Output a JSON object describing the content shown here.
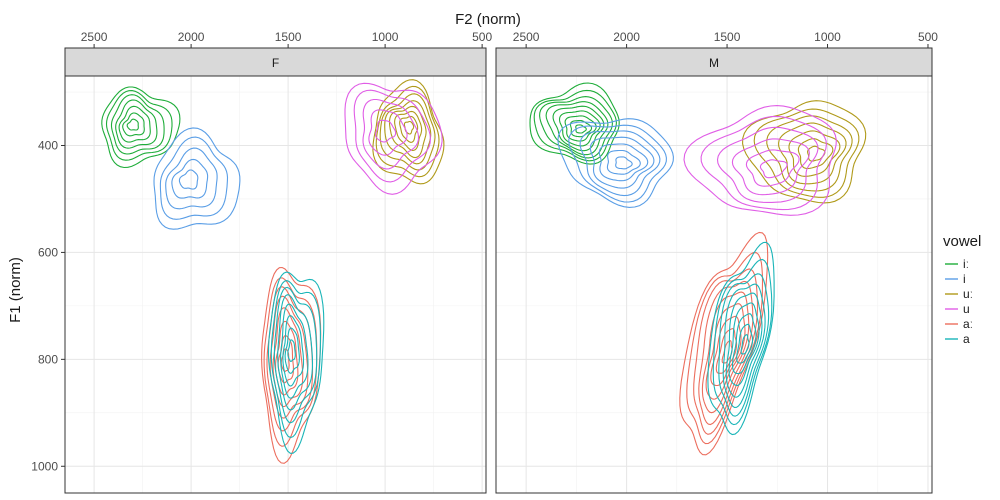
{
  "chart_data": {
    "type": "contour",
    "xlabel": "F2 (norm)",
    "ylabel": "F1 (norm)",
    "x_reversed": true,
    "y_reversed": true,
    "x_axis_position": "top",
    "xlim": [
      2650,
      480
    ],
    "ylim": [
      270,
      1050
    ],
    "x_ticks": [
      2500,
      2000,
      1500,
      1000,
      500
    ],
    "y_ticks": [
      400,
      600,
      800,
      1000
    ],
    "grid": true,
    "legend": {
      "title": "vowel",
      "position": "right",
      "entries": [
        {
          "label": "iː",
          "color": "#1fad3a"
        },
        {
          "label": "i",
          "color": "#5a9ee6"
        },
        {
          "label": "uː",
          "color": "#b09a1a"
        },
        {
          "label": "u",
          "color": "#e05ee6"
        },
        {
          "label": "aː",
          "color": "#ec6e5e"
        },
        {
          "label": "a",
          "color": "#1ab5b8"
        }
      ]
    },
    "panels": [
      {
        "label": "F",
        "series": [
          {
            "name": "iː",
            "center": [
              2270,
              365
            ],
            "spread": [
              190,
              72
            ],
            "rotation": 15,
            "rings": 7
          },
          {
            "name": "i",
            "center": [
              1980,
              470
            ],
            "spread": [
              220,
              90
            ],
            "rotation": 25,
            "rings": 5
          },
          {
            "name": "uː",
            "center": [
              880,
              380
            ],
            "spread": [
              180,
              90
            ],
            "rotation": -10,
            "rings": 8
          },
          {
            "name": "u",
            "center": [
              970,
              380
            ],
            "spread": [
              240,
              100
            ],
            "rotation": -10,
            "rings": 5
          },
          {
            "name": "aː",
            "center": [
              1490,
              800
            ],
            "spread": [
              150,
              170
            ],
            "rotation": 0,
            "rings": 8
          },
          {
            "name": "a",
            "center": [
              1460,
              790
            ],
            "spread": [
              140,
              160
            ],
            "rotation": 0,
            "rings": 8
          }
        ]
      },
      {
        "label": "M",
        "series": [
          {
            "name": "iː",
            "center": [
              2250,
              360
            ],
            "spread": [
              220,
              70
            ],
            "rotation": 10,
            "rings": 9
          },
          {
            "name": "i",
            "center": [
              2050,
              425
            ],
            "spread": [
              270,
              80
            ],
            "rotation": 10,
            "rings": 7
          },
          {
            "name": "uː",
            "center": [
              1100,
              410
            ],
            "spread": [
              280,
              95
            ],
            "rotation": -12,
            "rings": 7
          },
          {
            "name": "u",
            "center": [
              1300,
              430
            ],
            "spread": [
              360,
              100
            ],
            "rotation": -10,
            "rings": 6
          },
          {
            "name": "aː",
            "center": [
              1520,
              770
            ],
            "spread": [
              160,
              200
            ],
            "rotation": 15,
            "rings": 9
          },
          {
            "name": "a",
            "center": [
              1430,
              760
            ],
            "spread": [
              140,
              170
            ],
            "rotation": 10,
            "rings": 9
          }
        ]
      }
    ]
  }
}
